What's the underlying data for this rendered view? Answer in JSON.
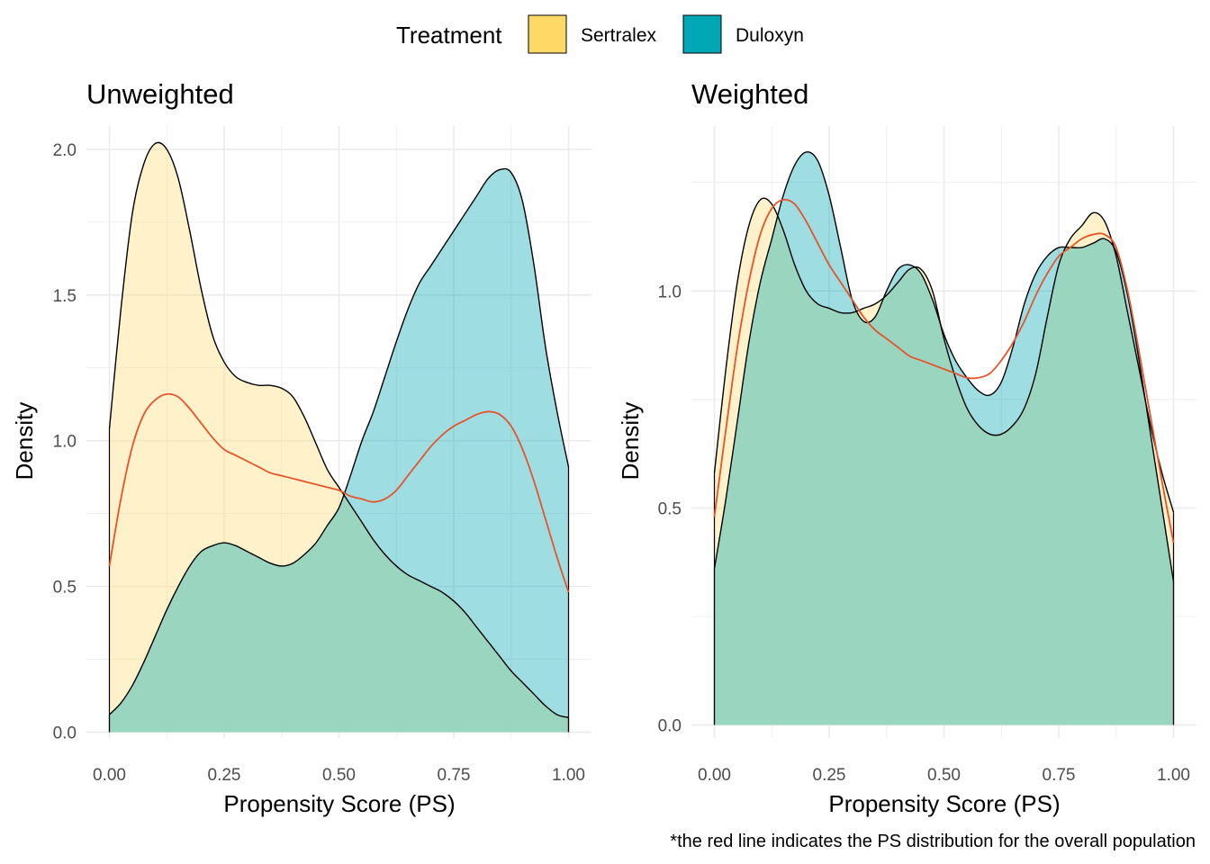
{
  "legend": {
    "title": "Treatment",
    "items": [
      {
        "label": "Sertralex",
        "color": "#FFD966"
      },
      {
        "label": "Duloxyn",
        "color": "#00A8B5"
      }
    ]
  },
  "caption": "*the red line indicates the PS distribution for the overall population",
  "colors": {
    "sertralex_fill": "#FFD966",
    "duloxyn_fill": "#00A8B5",
    "overlap_fill": "#9AD5C0",
    "overall_line": "#E8532A",
    "overall_line_dark": "#A0402A",
    "grid": "#EBEBEB"
  },
  "chart_data": [
    {
      "type": "area",
      "title": "Unweighted",
      "xlabel": "Propensity Score (PS)",
      "ylabel": "Density",
      "xlim": [
        -0.05,
        1.05
      ],
      "ylim": [
        -0.02,
        2.08
      ],
      "x_ticks": [
        0,
        0.25,
        0.5,
        0.75,
        1.0
      ],
      "x_tick_labels": [
        "0.00",
        "0.25",
        "0.50",
        "0.75",
        "1.00"
      ],
      "y_ticks": [
        0,
        0.5,
        1.0,
        1.5,
        2.0
      ],
      "y_tick_labels": [
        "0.0",
        "0.5",
        "1.0",
        "1.5",
        "2.0"
      ],
      "grid": true,
      "series": [
        {
          "name": "Sertralex",
          "x": [
            0,
            0.025,
            0.05,
            0.075,
            0.1,
            0.125,
            0.15,
            0.175,
            0.2,
            0.225,
            0.25,
            0.275,
            0.3,
            0.325,
            0.35,
            0.375,
            0.4,
            0.425,
            0.45,
            0.475,
            0.5,
            0.525,
            0.55,
            0.575,
            0.6,
            0.625,
            0.65,
            0.675,
            0.7,
            0.725,
            0.75,
            0.775,
            0.8,
            0.825,
            0.85,
            0.875,
            0.9,
            0.925,
            0.95,
            0.975,
            1.0
          ],
          "y": [
            1.04,
            1.45,
            1.78,
            1.95,
            2.02,
            2.0,
            1.9,
            1.72,
            1.52,
            1.36,
            1.27,
            1.22,
            1.2,
            1.19,
            1.19,
            1.18,
            1.15,
            1.08,
            0.99,
            0.9,
            0.84,
            0.78,
            0.72,
            0.66,
            0.61,
            0.57,
            0.54,
            0.52,
            0.5,
            0.48,
            0.45,
            0.41,
            0.36,
            0.31,
            0.26,
            0.21,
            0.17,
            0.13,
            0.09,
            0.06,
            0.05
          ]
        },
        {
          "name": "Duloxyn",
          "x": [
            0,
            0.025,
            0.05,
            0.075,
            0.1,
            0.125,
            0.15,
            0.175,
            0.2,
            0.225,
            0.25,
            0.275,
            0.3,
            0.325,
            0.35,
            0.375,
            0.4,
            0.425,
            0.45,
            0.475,
            0.5,
            0.525,
            0.55,
            0.575,
            0.6,
            0.625,
            0.65,
            0.675,
            0.7,
            0.725,
            0.75,
            0.775,
            0.8,
            0.825,
            0.85,
            0.875,
            0.9,
            0.925,
            0.95,
            0.975,
            1.0
          ],
          "y": [
            0.06,
            0.1,
            0.16,
            0.24,
            0.33,
            0.42,
            0.5,
            0.57,
            0.62,
            0.64,
            0.65,
            0.64,
            0.62,
            0.6,
            0.58,
            0.57,
            0.58,
            0.61,
            0.65,
            0.71,
            0.77,
            0.88,
            1.0,
            1.1,
            1.22,
            1.34,
            1.45,
            1.54,
            1.6,
            1.66,
            1.72,
            1.78,
            1.84,
            1.9,
            1.93,
            1.92,
            1.82,
            1.6,
            1.32,
            1.1,
            0.91
          ]
        },
        {
          "name": "Overall",
          "x": [
            0,
            0.025,
            0.05,
            0.075,
            0.1,
            0.125,
            0.15,
            0.175,
            0.2,
            0.225,
            0.25,
            0.275,
            0.3,
            0.325,
            0.35,
            0.375,
            0.4,
            0.425,
            0.45,
            0.475,
            0.5,
            0.525,
            0.55,
            0.575,
            0.6,
            0.625,
            0.65,
            0.675,
            0.7,
            0.725,
            0.75,
            0.775,
            0.8,
            0.825,
            0.85,
            0.875,
            0.9,
            0.925,
            0.95,
            0.975,
            1.0
          ],
          "y": [
            0.57,
            0.8,
            0.98,
            1.09,
            1.14,
            1.16,
            1.15,
            1.11,
            1.06,
            1.01,
            0.97,
            0.95,
            0.93,
            0.91,
            0.89,
            0.88,
            0.87,
            0.86,
            0.85,
            0.84,
            0.83,
            0.81,
            0.8,
            0.79,
            0.8,
            0.83,
            0.88,
            0.93,
            0.98,
            1.02,
            1.05,
            1.07,
            1.09,
            1.1,
            1.09,
            1.05,
            0.97,
            0.86,
            0.73,
            0.6,
            0.48
          ]
        }
      ]
    },
    {
      "type": "area",
      "title": "Weighted",
      "xlabel": "Propensity Score (PS)",
      "ylabel": "Density",
      "xlim": [
        -0.05,
        1.05
      ],
      "ylim": [
        -0.03,
        1.38
      ],
      "x_ticks": [
        0,
        0.25,
        0.5,
        0.75,
        1.0
      ],
      "x_tick_labels": [
        "0.00",
        "0.25",
        "0.50",
        "0.75",
        "1.00"
      ],
      "y_ticks": [
        0,
        0.5,
        1.0
      ],
      "y_tick_labels": [
        "0.0",
        "0.5",
        "1.0"
      ],
      "grid": true,
      "series": [
        {
          "name": "Sertralex",
          "x": [
            0,
            0.025,
            0.05,
            0.075,
            0.1,
            0.125,
            0.15,
            0.175,
            0.2,
            0.225,
            0.25,
            0.275,
            0.3,
            0.325,
            0.35,
            0.375,
            0.4,
            0.425,
            0.45,
            0.475,
            0.5,
            0.525,
            0.55,
            0.575,
            0.6,
            0.625,
            0.65,
            0.675,
            0.7,
            0.725,
            0.75,
            0.775,
            0.8,
            0.825,
            0.85,
            0.875,
            0.9,
            0.925,
            0.95,
            0.975,
            1.0
          ],
          "y": [
            0.58,
            0.82,
            1.02,
            1.15,
            1.21,
            1.2,
            1.14,
            1.06,
            1.0,
            0.97,
            0.96,
            0.95,
            0.95,
            0.96,
            0.97,
            0.99,
            1.02,
            1.05,
            1.05,
            1.0,
            0.89,
            0.8,
            0.73,
            0.69,
            0.67,
            0.67,
            0.69,
            0.73,
            0.81,
            0.94,
            1.06,
            1.12,
            1.15,
            1.18,
            1.16,
            1.08,
            0.95,
            0.82,
            0.69,
            0.58,
            0.49
          ]
        },
        {
          "name": "Duloxyn",
          "x": [
            0,
            0.025,
            0.05,
            0.075,
            0.1,
            0.125,
            0.15,
            0.175,
            0.2,
            0.225,
            0.25,
            0.275,
            0.3,
            0.325,
            0.35,
            0.375,
            0.4,
            0.425,
            0.45,
            0.475,
            0.5,
            0.525,
            0.55,
            0.575,
            0.6,
            0.625,
            0.65,
            0.675,
            0.7,
            0.725,
            0.75,
            0.775,
            0.8,
            0.825,
            0.85,
            0.875,
            0.9,
            0.925,
            0.95,
            0.975,
            1.0
          ],
          "y": [
            0.36,
            0.52,
            0.7,
            0.88,
            1.02,
            1.12,
            1.22,
            1.29,
            1.32,
            1.3,
            1.22,
            1.1,
            0.98,
            0.93,
            0.94,
            1.0,
            1.05,
            1.06,
            1.04,
            0.98,
            0.9,
            0.84,
            0.8,
            0.77,
            0.76,
            0.79,
            0.87,
            0.97,
            1.04,
            1.08,
            1.1,
            1.1,
            1.1,
            1.11,
            1.12,
            1.09,
            0.99,
            0.84,
            0.67,
            0.5,
            0.33
          ]
        },
        {
          "name": "Overall",
          "x": [
            0,
            0.025,
            0.05,
            0.075,
            0.1,
            0.125,
            0.15,
            0.175,
            0.2,
            0.225,
            0.25,
            0.275,
            0.3,
            0.325,
            0.35,
            0.375,
            0.4,
            0.425,
            0.45,
            0.475,
            0.5,
            0.525,
            0.55,
            0.575,
            0.6,
            0.625,
            0.65,
            0.675,
            0.7,
            0.725,
            0.75,
            0.775,
            0.8,
            0.825,
            0.85,
            0.875,
            0.9,
            0.925,
            0.95,
            0.975,
            1.0
          ],
          "y": [
            0.48,
            0.68,
            0.87,
            1.02,
            1.13,
            1.19,
            1.21,
            1.2,
            1.16,
            1.11,
            1.06,
            1.02,
            0.98,
            0.94,
            0.91,
            0.89,
            0.87,
            0.85,
            0.84,
            0.83,
            0.82,
            0.81,
            0.8,
            0.8,
            0.81,
            0.84,
            0.88,
            0.93,
            0.99,
            1.04,
            1.08,
            1.1,
            1.12,
            1.13,
            1.13,
            1.1,
            1.0,
            0.86,
            0.71,
            0.56,
            0.42
          ]
        }
      ]
    }
  ]
}
